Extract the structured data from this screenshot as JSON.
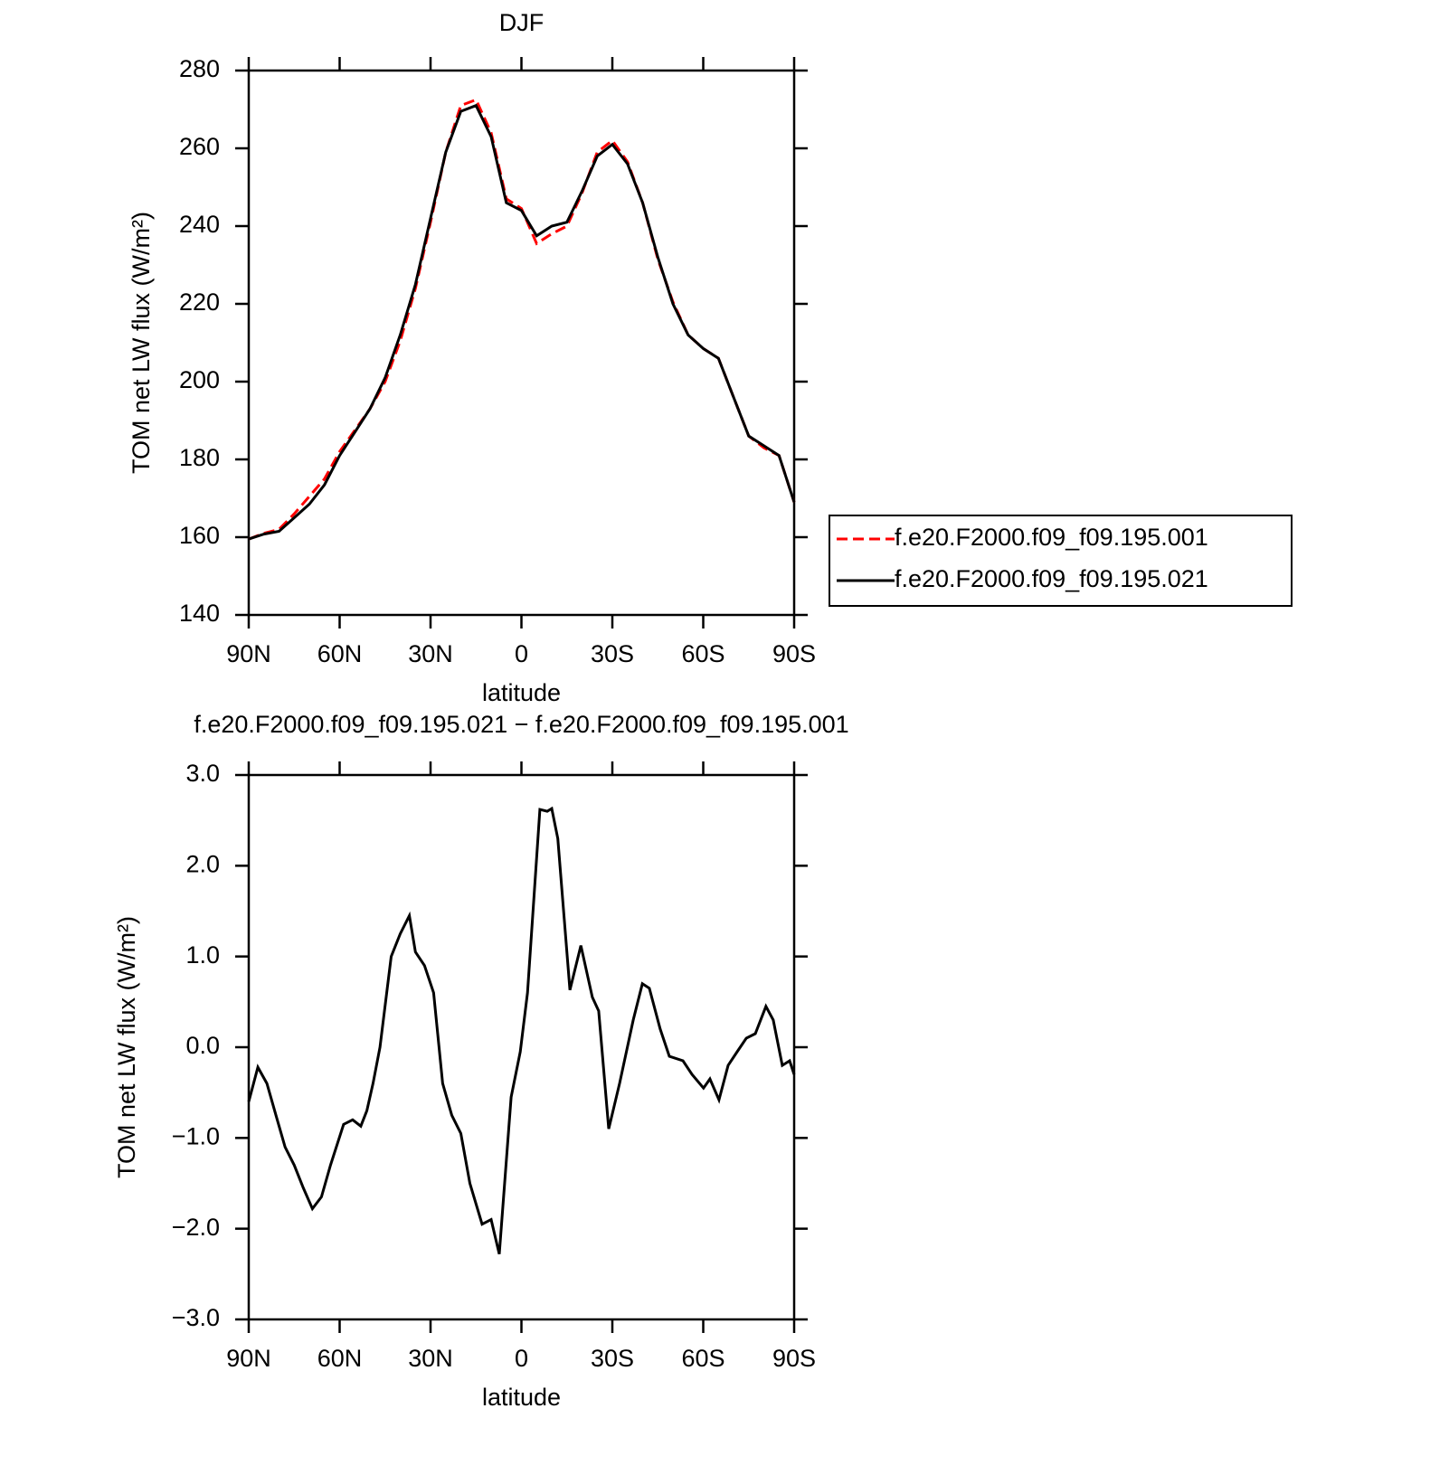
{
  "chart_data": [
    {
      "type": "line",
      "title": "DJF",
      "xlabel": "latitude",
      "ylabel": "TOM net LW flux (W/m²)",
      "x": [
        90,
        85,
        80,
        75,
        70,
        65,
        60,
        55,
        50,
        45,
        40,
        35,
        30,
        25,
        20,
        15,
        10,
        5,
        0,
        -5,
        -10,
        -15,
        -20,
        -25,
        -30,
        -35,
        -40,
        -45,
        -50,
        -55,
        -60,
        -65,
        -70,
        -75,
        -80,
        -85,
        -90
      ],
      "series": [
        {
          "name": "f.e20.F2000.f09_f09.195.001",
          "color": "#ff0000",
          "linestyle": "dashed",
          "values": [
            159.5,
            161,
            162,
            166,
            170.5,
            175,
            182,
            187.5,
            193,
            200,
            210.5,
            224,
            241,
            259,
            271,
            272.5,
            264,
            247,
            244.5,
            235.5,
            238,
            240,
            248.5,
            259,
            262,
            256.5,
            246,
            231.5,
            220.5,
            212,
            208.5,
            206,
            196,
            186,
            183,
            181,
            169
          ]
        },
        {
          "name": "f.e20.F2000.f09_f09.195.021",
          "color": "#000000",
          "linestyle": "solid",
          "values": [
            159.5,
            160.8,
            161.5,
            165,
            168.5,
            173.5,
            181,
            187,
            193,
            201,
            212,
            225,
            242,
            259,
            269.5,
            271,
            263,
            246,
            244,
            237.5,
            240,
            241,
            249,
            258,
            261,
            256,
            246,
            232,
            220,
            212,
            208.5,
            206,
            196,
            186,
            183.5,
            181,
            169
          ]
        }
      ],
      "xlim": [
        90,
        -90
      ],
      "xticks": [
        {
          "value": 90,
          "label": "90N"
        },
        {
          "value": 60,
          "label": "60N"
        },
        {
          "value": 30,
          "label": "30N"
        },
        0,
        {
          "value": -30,
          "label": "30S"
        },
        {
          "value": -60,
          "label": "60S"
        },
        {
          "value": -90,
          "label": "90S"
        }
      ],
      "ylim": [
        140,
        280
      ],
      "yticks": [
        140,
        160,
        180,
        200,
        220,
        240,
        260,
        280
      ],
      "legend": "right"
    },
    {
      "type": "line",
      "title": "f.e20.F2000.f09_f09.195.021 − f.e20.F2000.f09_f09.195.001",
      "xlabel": "latitude",
      "ylabel": "TOM net LW flux (W/m²)",
      "x": [
        90,
        87,
        84,
        81,
        78,
        75,
        72,
        69,
        66,
        63,
        58.7,
        55.7,
        53,
        51,
        49,
        46.7,
        43,
        40,
        37,
        35,
        32,
        29,
        26,
        23,
        20,
        17,
        13,
        10,
        7.3,
        3.4,
        0.4,
        -2,
        -6.1,
        -8.5,
        -10,
        -12,
        -16,
        -19.6,
        -23.4,
        -25.5,
        -28.8,
        -32.4,
        -36.9,
        -39.9,
        -42.2,
        -45.8,
        -48.8,
        -53.3,
        -56.3,
        -60.1,
        -62.2,
        -65.2,
        -68.2,
        -71.2,
        -74.2,
        -77.2,
        -80.7,
        -83.1,
        -86.1,
        -88.5,
        -90
      ],
      "series": [
        {
          "color": "#000000",
          "linestyle": "solid",
          "values": [
            -0.6,
            -0.22,
            -0.4,
            -0.75,
            -1.1,
            -1.3,
            -1.55,
            -1.78,
            -1.65,
            -1.3,
            -0.85,
            -0.8,
            -0.87,
            -0.7,
            -0.4,
            0,
            1.0,
            1.25,
            1.45,
            1.05,
            0.9,
            0.6,
            -0.4,
            -0.75,
            -0.95,
            -1.5,
            -1.95,
            -1.9,
            -2.28,
            -0.55,
            -0.05,
            0.6,
            2.62,
            2.6,
            2.63,
            2.3,
            0.63,
            1.12,
            0.55,
            0.4,
            -0.9,
            -0.4,
            0.3,
            0.7,
            0.65,
            0.2,
            -0.1,
            -0.15,
            -0.3,
            -0.45,
            -0.35,
            -0.58,
            -0.2,
            -0.05,
            0.1,
            0.15,
            0.45,
            0.3,
            -0.2,
            -0.15,
            -0.3
          ]
        }
      ],
      "xlim": [
        90,
        -90
      ],
      "xticks": [
        {
          "value": 90,
          "label": "90N"
        },
        {
          "value": 60,
          "label": "60N"
        },
        {
          "value": 30,
          "label": "30N"
        },
        0,
        {
          "value": -30,
          "label": "30S"
        },
        {
          "value": -60,
          "label": "60S"
        },
        {
          "value": -90,
          "label": "90S"
        }
      ],
      "ylim": [
        -3,
        3
      ],
      "yticks": [
        {
          "value": -3,
          "label": "−3.0"
        },
        {
          "value": -2,
          "label": "−2.0"
        },
        {
          "value": -1,
          "label": "−1.0"
        },
        {
          "value": 0,
          "label": "0.0"
        },
        {
          "value": 1,
          "label": "1.0"
        },
        {
          "value": 2,
          "label": "2.0"
        },
        {
          "value": 3,
          "label": "3.0"
        }
      ]
    }
  ]
}
